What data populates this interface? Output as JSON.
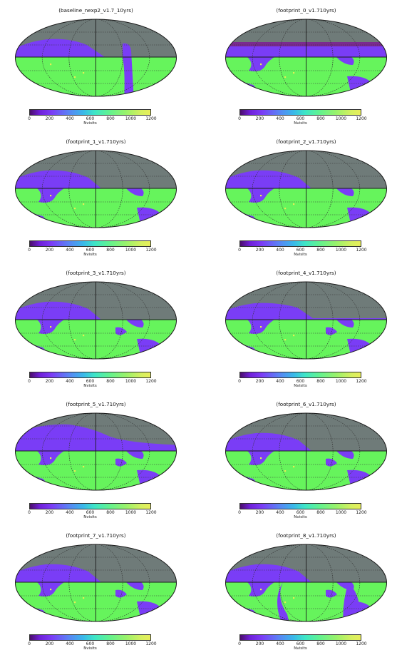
{
  "colorbar": {
    "label": "Nvisits",
    "ticks": [
      "0",
      "200",
      "400",
      "600",
      "800",
      "1000",
      "1200"
    ],
    "range": [
      0,
      1200
    ]
  },
  "colors": {
    "masked": "#6f7b79",
    "low_coverage": "#7a3df6",
    "main_survey": "#66f45c",
    "deep_drilling": "#e4ee54",
    "outline": "#1a1a1a",
    "graticule": "#333333",
    "plane_boundary": "#7d1a6a"
  },
  "chart_data": [
    {
      "type": "heatmap",
      "projection": "mollweide",
      "title": "(baseline_nexp2_v1.7_10yrs)",
      "colorbar_label": "Nvisits",
      "ylim": [
        0,
        1200
      ]
    },
    {
      "type": "heatmap",
      "projection": "mollweide",
      "title": "(footprint_0_v1.710yrs)",
      "colorbar_label": "Nvisits",
      "ylim": [
        0,
        1200
      ]
    },
    {
      "type": "heatmap",
      "projection": "mollweide",
      "title": "(footprint_1_v1.710yrs)",
      "colorbar_label": "Nvisits",
      "ylim": [
        0,
        1200
      ]
    },
    {
      "type": "heatmap",
      "projection": "mollweide",
      "title": "(footprint_2_v1.710yrs)",
      "colorbar_label": "Nvisits",
      "ylim": [
        0,
        1200
      ]
    },
    {
      "type": "heatmap",
      "projection": "mollweide",
      "title": "(footprint_3_v1.710yrs)",
      "colorbar_label": "Nvisits",
      "ylim": [
        0,
        1200
      ]
    },
    {
      "type": "heatmap",
      "projection": "mollweide",
      "title": "(footprint_4_v1.710yrs)",
      "colorbar_label": "Nvisits",
      "ylim": [
        0,
        1200
      ]
    },
    {
      "type": "heatmap",
      "projection": "mollweide",
      "title": "(footprint_5_v1.710yrs)",
      "colorbar_label": "Nvisits",
      "ylim": [
        0,
        1200
      ]
    },
    {
      "type": "heatmap",
      "projection": "mollweide",
      "title": "(footprint_6_v1.710yrs)",
      "colorbar_label": "Nvisits",
      "ylim": [
        0,
        1200
      ]
    },
    {
      "type": "heatmap",
      "projection": "mollweide",
      "title": "(footprint_7_v1.710yrs)",
      "colorbar_label": "Nvisits",
      "ylim": [
        0,
        1200
      ]
    },
    {
      "type": "heatmap",
      "projection": "mollweide",
      "title": "(footprint_8_v1.710yrs)",
      "colorbar_label": "Nvisits",
      "ylim": [
        0,
        1200
      ]
    }
  ]
}
